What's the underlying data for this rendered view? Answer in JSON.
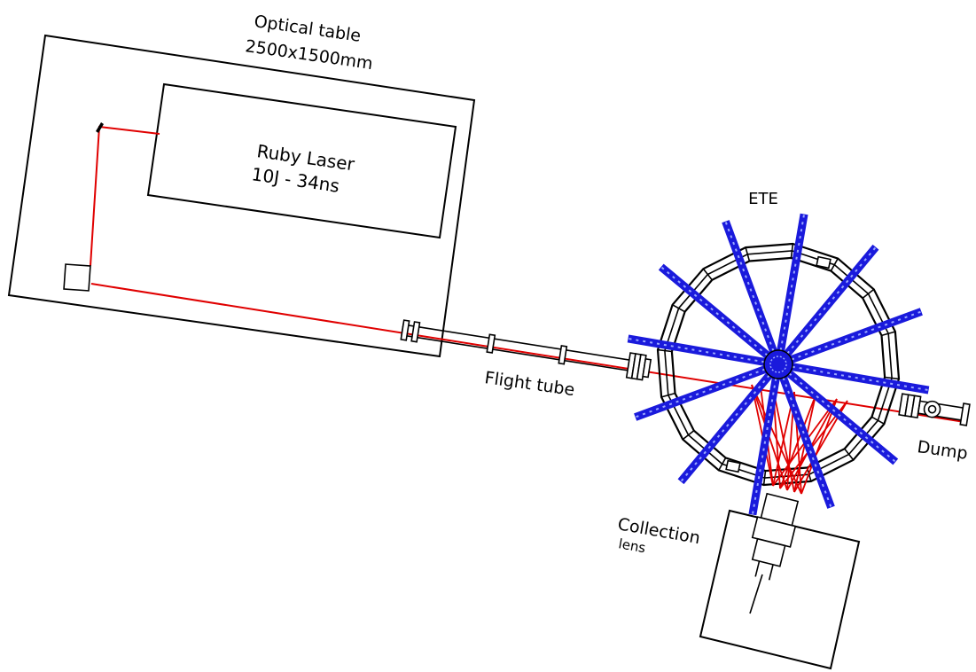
{
  "labels": {
    "optical_table_title": "Optical table",
    "optical_table_size": "2500x1500mm",
    "laser_name": "Ruby Laser",
    "laser_spec": "10J - 34ns",
    "machine_name": "ETE",
    "flight_tube": "Flight tube",
    "dump": "Dump",
    "collection_line1": "Collection",
    "collection_line2": "lens"
  },
  "colors": {
    "beam": "#e00000",
    "coils": "#1a1adc",
    "coil_dash": "#9aa8ff",
    "outline": "#000000",
    "background": "#ffffff"
  },
  "machine": {
    "field_coil_count": 12,
    "vessel_segments": 16
  }
}
